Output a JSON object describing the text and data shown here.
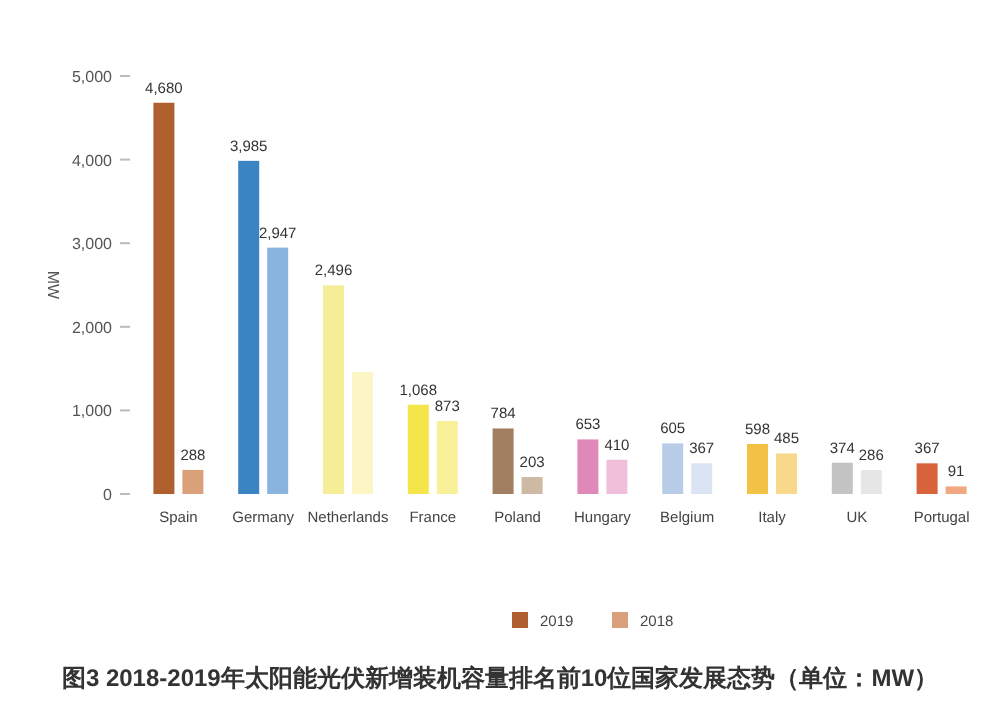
{
  "chart_data": {
    "type": "bar",
    "ylabel": "MW",
    "categories": [
      "Spain",
      "Germany",
      "Netherlands",
      "France",
      "Poland",
      "Hungary",
      "Belgium",
      "Italy",
      "UK",
      "Portugal"
    ],
    "series": [
      {
        "name": "2019",
        "color": "#b0602e",
        "colors": [
          "#b0602e",
          "#3a84c4",
          "#f6ee96",
          "#f4e64a",
          "#a08060",
          "#e088b8",
          "#b8cce8",
          "#f3c244",
          "#c4c4c4",
          "#d8623a"
        ],
        "values": [
          4680,
          3985,
          2496,
          1068,
          784,
          653,
          605,
          598,
          374,
          367
        ],
        "value_labels": [
          "4,680",
          "3,985",
          "2,496",
          "1,068",
          "784",
          "653",
          "605",
          "598",
          "374",
          "367"
        ]
      },
      {
        "name": "2018",
        "color": "#d9a07a",
        "colors": [
          "#d9a07a",
          "#8ab4e0",
          "#fbf6c4",
          "#f9f09a",
          "#cdb9a4",
          "#f0c0da",
          "#dae4f2",
          "#f8d98c",
          "#e6e6e6",
          "#f0a880"
        ],
        "values": [
          288,
          2947,
          1460,
          873,
          203,
          410,
          367,
          485,
          286,
          91
        ],
        "value_labels": [
          "288",
          "2,947",
          null,
          "873",
          "203",
          "410",
          "367",
          "485",
          "286",
          "91"
        ]
      }
    ],
    "ylim": [
      0,
      5000
    ],
    "yticks": [
      0,
      {
        "value": 1000,
        "label": "1,000"
      },
      {
        "value": 2000,
        "label": "2,000"
      },
      {
        "value": 3000,
        "label": "3,000"
      },
      {
        "value": 4000,
        "label": "4,000"
      },
      {
        "value": 5000,
        "label": "5,000"
      }
    ],
    "grid": false,
    "legend": "bottom",
    "annotations": [
      "图3 2018-2019年太阳能光伏新增装机容量排名前10位国家发展态势（单位：MW）"
    ]
  }
}
